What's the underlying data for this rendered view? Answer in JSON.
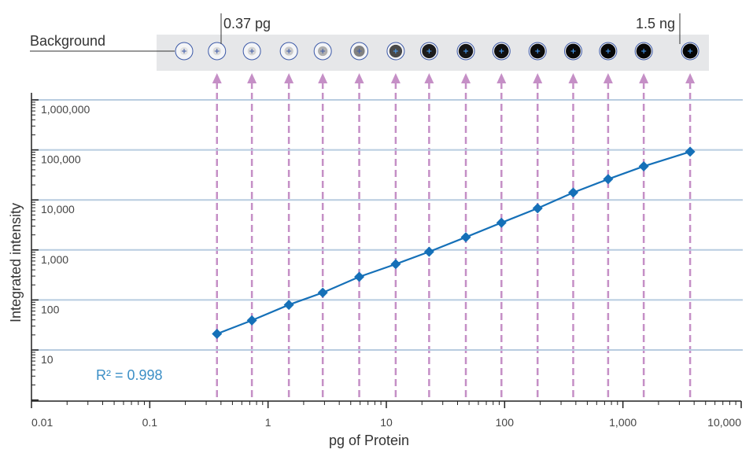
{
  "chart_data": {
    "type": "line",
    "xlabel": "pg of Protein",
    "ylabel": "Integrated intensity",
    "x_scale": "log",
    "y_scale": "log",
    "xlim": [
      0.01,
      10000
    ],
    "ylim": [
      3,
      1000000
    ],
    "x_ticks": [
      0.01,
      0.1,
      1,
      10,
      100,
      1000,
      10000
    ],
    "x_tick_labels": [
      "0.01",
      "0.1",
      "1",
      "10",
      "100",
      "1,000",
      "10,000"
    ],
    "y_ticks": [
      10,
      100,
      1000,
      10000,
      100000,
      1000000
    ],
    "y_tick_labels": [
      "10",
      "100",
      "1,000",
      "10,000",
      "100,000",
      "1,000,000"
    ],
    "grid": "horizontal",
    "series": [
      {
        "x": [
          0.37,
          0.73,
          1.5,
          2.9,
          5.9,
          12,
          23,
          47,
          94,
          190,
          380,
          750,
          1500,
          3700
        ],
        "y": [
          21,
          39,
          80,
          140,
          290,
          520,
          920,
          1800,
          3500,
          6800,
          14000,
          26000,
          47000,
          92000
        ]
      }
    ],
    "annotations": {
      "r_squared": "R² = 0.998",
      "background_label": "Background",
      "low_label": "0.37 pg",
      "high_label": "1.5 ng"
    },
    "blot_spots": {
      "count": 15,
      "intensity": [
        0.02,
        0.05,
        0.08,
        0.13,
        0.25,
        0.45,
        0.7,
        0.9,
        0.93,
        0.95,
        0.97,
        0.98,
        0.99,
        0.99,
        1.0
      ]
    }
  },
  "colors": {
    "series": "#1570b8",
    "arrows": "#c58fc6",
    "gridline": "#b8cce0",
    "axis": "#222222",
    "r2_text": "#3c8fc6",
    "blot_strip": "#e6e7e9"
  }
}
